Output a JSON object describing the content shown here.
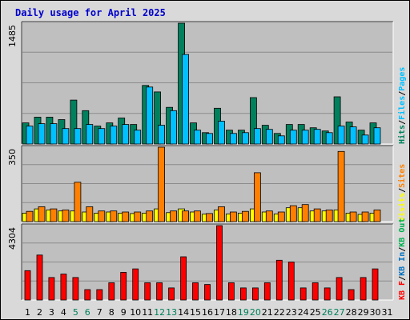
{
  "title": "Daily usage for April 2025",
  "colors": {
    "background": "#d9d9d9",
    "plot_background": "#bfbfbf",
    "gridline": "#8c8c8c",
    "title": "#0000cc",
    "hits": "#00805c",
    "files": "#00c0ff",
    "pages": "#00c0ff",
    "visits": "#ffff00",
    "sites": "#ff8000",
    "kbytes": "#ff0000",
    "kb_in": "#0070c0",
    "kb_out": "#00b050",
    "weekend_label": "#00805c",
    "label": "#000000"
  },
  "chart_data": [
    {
      "type": "bar",
      "panel": "hits-files-pages",
      "ylabel_max": "1485",
      "ylim": [
        0,
        1485
      ],
      "legend": [
        "Hits",
        "/",
        "Files",
        "/",
        "Pages"
      ],
      "series": [
        {
          "name": "Hits",
          "values": [
            260,
            330,
            330,
            300,
            540,
            410,
            220,
            260,
            320,
            240,
            720,
            640,
            450,
            1485,
            260,
            140,
            440,
            170,
            170,
            570,
            230,
            130,
            240,
            240,
            200,
            160,
            580,
            270,
            170,
            260
          ]
        },
        {
          "name": "Files",
          "values": [
            220,
            250,
            250,
            190,
            190,
            240,
            190,
            220,
            240,
            170,
            700,
            230,
            410,
            1100,
            170,
            130,
            280,
            130,
            140,
            190,
            180,
            100,
            170,
            170,
            180,
            140,
            220,
            210,
            110,
            200
          ]
        },
        {
          "name": "Pages",
          "values": [
            0,
            0,
            0,
            0,
            0,
            0,
            0,
            0,
            0,
            0,
            0,
            0,
            0,
            0,
            0,
            0,
            0,
            0,
            0,
            0,
            0,
            0,
            0,
            0,
            0,
            0,
            0,
            0,
            0,
            0
          ]
        }
      ]
    },
    {
      "type": "bar",
      "panel": "visits-sites",
      "ylabel_max": "350",
      "ylim": [
        0,
        350
      ],
      "legend": [
        "Visits",
        "/",
        "Sites"
      ],
      "series": [
        {
          "name": "Visits",
          "values": [
            40,
            60,
            55,
            50,
            50,
            45,
            40,
            45,
            40,
            38,
            40,
            60,
            42,
            60,
            45,
            35,
            55,
            36,
            40,
            60,
            45,
            36,
            65,
            65,
            50,
            50,
            55,
            40,
            34,
            40
          ]
        },
        {
          "name": "Sites",
          "values": [
            48,
            70,
            60,
            55,
            185,
            70,
            50,
            50,
            45,
            45,
            50,
            350,
            50,
            50,
            50,
            38,
            70,
            45,
            48,
            230,
            50,
            45,
            75,
            80,
            60,
            55,
            330,
            45,
            45,
            55
          ]
        }
      ]
    },
    {
      "type": "bar",
      "panel": "kbytes",
      "ylabel_max": "4304",
      "ylim": [
        0,
        4304
      ],
      "legend": [
        "KB F",
        "/",
        "KB In",
        "/",
        "KB Out"
      ],
      "series": [
        {
          "name": "KB F",
          "values": [
            1700,
            2600,
            1300,
            1500,
            1300,
            600,
            600,
            1000,
            1600,
            1800,
            1000,
            1000,
            700,
            2500,
            1000,
            900,
            4304,
            1000,
            700,
            700,
            1000,
            2300,
            2200,
            700,
            1000,
            700,
            1300,
            600,
            1300,
            1800
          ]
        }
      ]
    }
  ],
  "x_labels": [
    "1",
    "2",
    "3",
    "4",
    "5",
    "6",
    "7",
    "8",
    "9",
    "10",
    "11",
    "12",
    "13",
    "14",
    "15",
    "16",
    "17",
    "18",
    "19",
    "20",
    "21",
    "22",
    "23",
    "24",
    "25",
    "26",
    "27",
    "28",
    "29",
    "30",
    "31"
  ],
  "weekend_days": [
    "5",
    "6",
    "12",
    "13",
    "19",
    "20",
    "26",
    "27"
  ]
}
